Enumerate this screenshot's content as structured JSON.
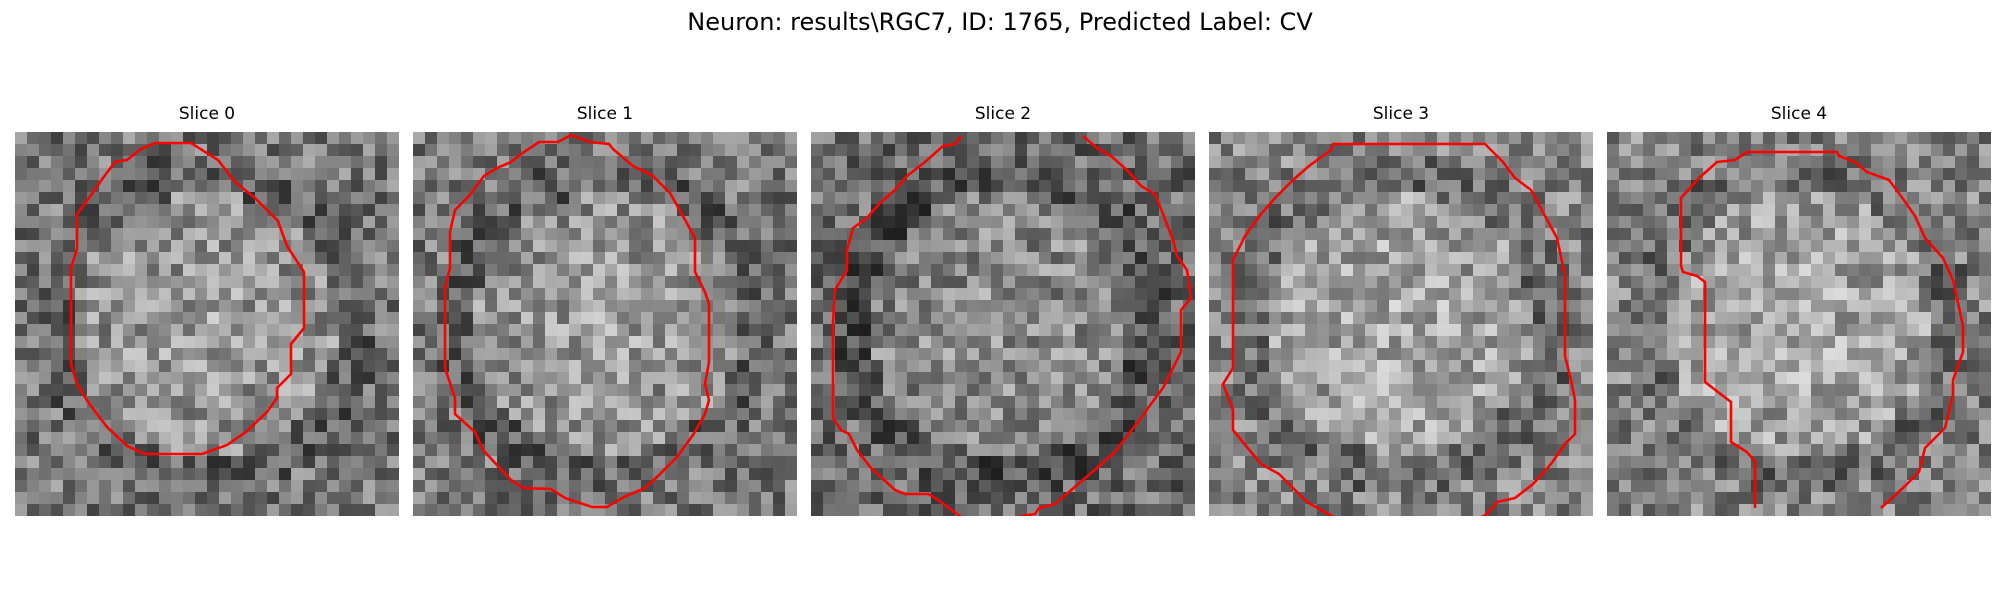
{
  "figure": {
    "title": "Neuron: results\\RGC7, ID: 1765, Predicted Label: CV"
  },
  "panels": [
    {
      "title": "Slice 0",
      "brightness": "medium",
      "contour": "closed"
    },
    {
      "title": "Slice 1",
      "brightness": "medium",
      "contour": "closed"
    },
    {
      "title": "Slice 2",
      "brightness": "dark",
      "contour": "open"
    },
    {
      "title": "Slice 3",
      "brightness": "bright",
      "contour": "open"
    },
    {
      "title": "Slice 4",
      "brightness": "bright",
      "contour": "open"
    }
  ],
  "colors": {
    "contour": "#ff0000",
    "image_colormap": "grayscale"
  }
}
